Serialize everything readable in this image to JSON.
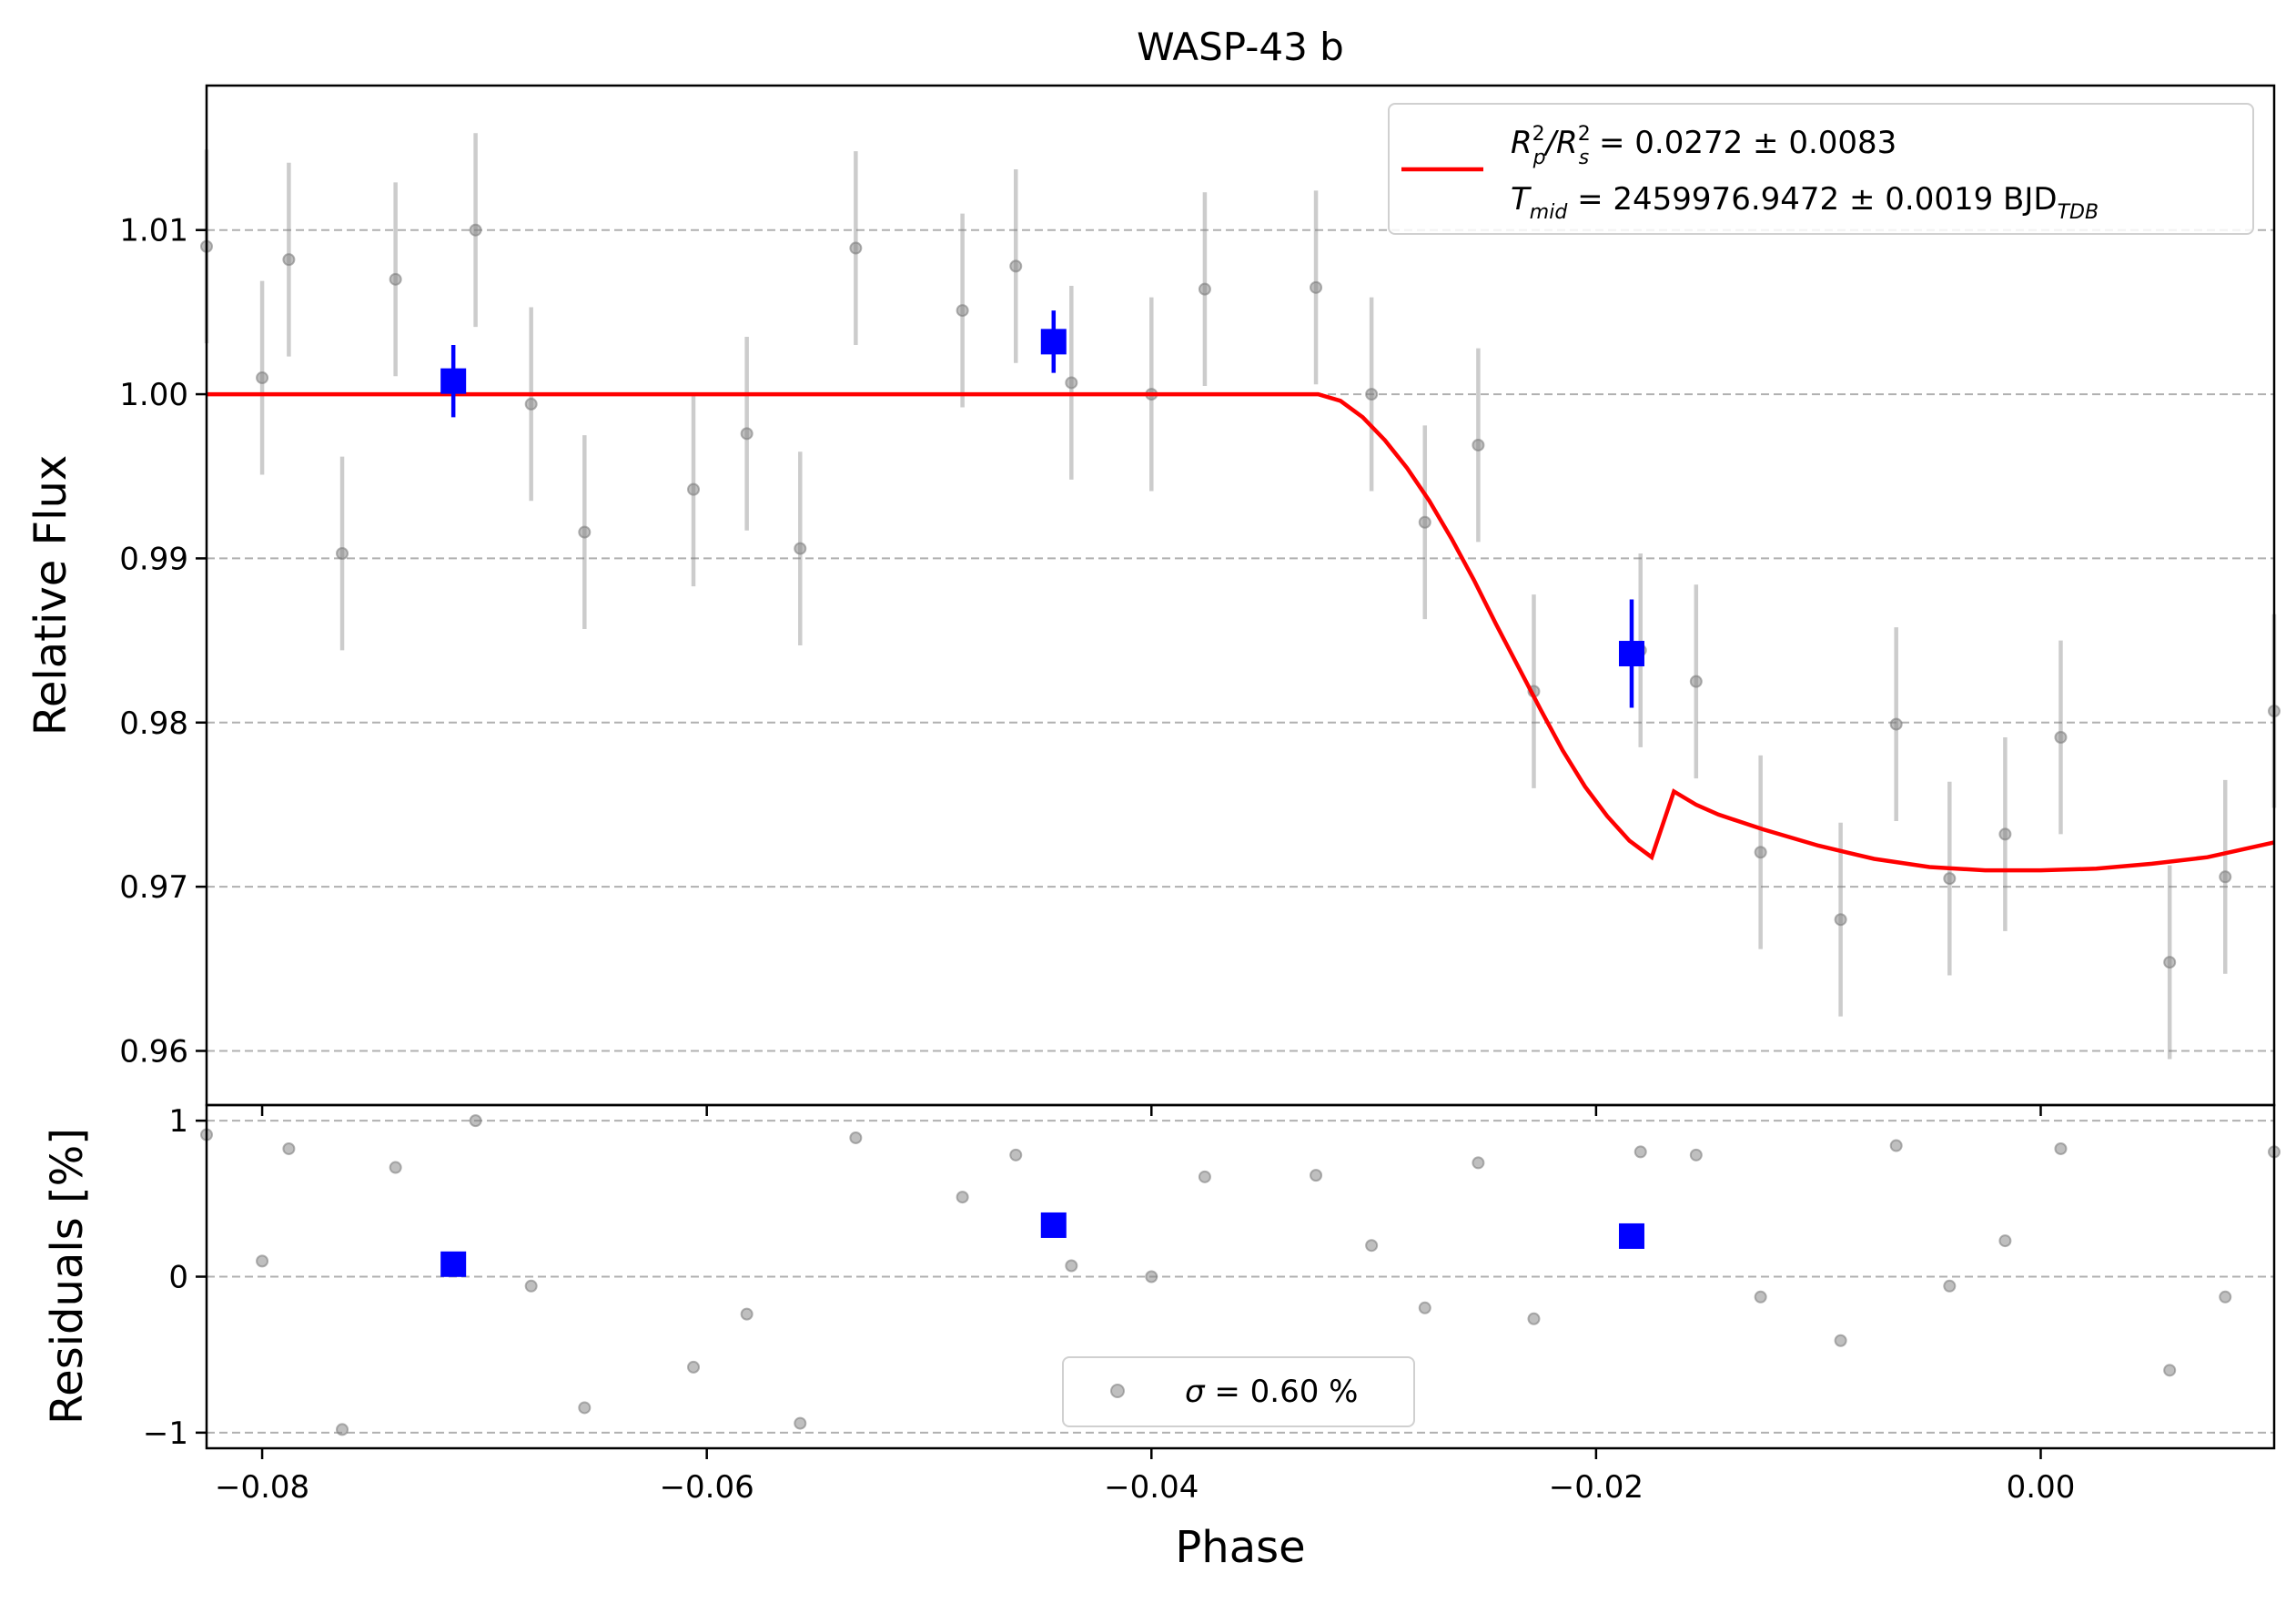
{
  "chart_data": [
    {
      "type": "scatter",
      "title": "WASP-43 b",
      "xlabel": "",
      "ylabel": "Relative Flux",
      "xlim": [
        -0.0825,
        0.0105
      ],
      "ylim": [
        0.9567,
        1.0188
      ],
      "x_ticks": [
        -0.08,
        -0.06,
        -0.04,
        -0.02,
        0.0
      ],
      "x_tick_labels": [
        "−0.08",
        "−0.06",
        "−0.04",
        "−0.02",
        "0.00"
      ],
      "y_ticks": [
        0.96,
        0.97,
        0.98,
        0.99,
        1.0,
        1.01
      ],
      "y_tick_labels": [
        "0.96",
        "0.97",
        "0.98",
        "0.99",
        "1.00",
        "1.01"
      ],
      "grid": "horizontal-dashed",
      "legend_position": "top-right",
      "legend": {
        "rp_prefix": "R",
        "rp_sup": "2",
        "rp_sub": "p",
        "rs_prefix": "/R",
        "rs_sup": "2",
        "rs_sub": "s",
        "rp_value": " = 0.0272 ± 0.0083",
        "t_prefix": "T",
        "t_sub": "mid",
        "t_value": " = 2459976.9472 ± 0.0019 BJD",
        "t_unit_sub": "TDB"
      },
      "series": [
        {
          "kind": "raw",
          "color": "#808080",
          "x": [
            -0.0825,
            -0.08,
            -0.0788,
            -0.0764,
            -0.074,
            -0.0704,
            -0.0679,
            -0.0655,
            -0.0606,
            -0.0582,
            -0.0558,
            -0.0533,
            -0.0485,
            -0.0461,
            -0.0436,
            -0.04,
            -0.0376,
            -0.0326,
            -0.0301,
            -0.0277,
            -0.0253,
            -0.0228,
            -0.018,
            -0.0155,
            -0.0126,
            -0.009,
            -0.0065,
            -0.0041,
            -0.0016,
            0.0009,
            0.0058,
            0.0083,
            0.0105
          ],
          "y": [
            1.009,
            1.001,
            1.0082,
            0.9903,
            1.007,
            1.01,
            0.9994,
            0.9916,
            0.9942,
            0.9976,
            0.9906,
            1.0089,
            1.0051,
            1.0078,
            1.0007,
            1.0,
            1.0064,
            1.0065,
            1.0,
            0.9922,
            0.9969,
            0.9819,
            0.9844,
            0.9825,
            0.9721,
            0.968,
            0.9799,
            0.9705,
            0.9732,
            0.9791,
            0.9654,
            0.9706,
            0.9807
          ],
          "yerr": 0.0059
        },
        {
          "kind": "binned",
          "color": "#0000ff",
          "x": [
            -0.0714,
            -0.0444,
            -0.0184
          ],
          "y": [
            1.0008,
            1.0032,
            0.9842
          ],
          "yerr": [
            0.0022,
            0.0019,
            0.0033
          ]
        },
        {
          "kind": "model",
          "color": "#ff0000",
          "x": [
            -0.0825,
            -0.0325,
            -0.0315,
            -0.0305,
            -0.0295,
            -0.0285,
            -0.0275,
            -0.0265,
            -0.0255,
            -0.0245,
            -0.0235,
            -0.0225,
            -0.0215,
            -0.0205,
            -0.0195,
            -0.0185,
            -0.0175,
            -0.0165,
            -0.0155,
            -0.0145,
            -0.0125,
            -0.01,
            -0.0075,
            -0.005,
            -0.0025,
            0.0,
            0.0025,
            0.005,
            0.0075,
            0.0105
          ],
          "y": [
            1.0,
            1.0,
            0.9996,
            0.9986,
            0.9972,
            0.9955,
            0.9935,
            0.9912,
            0.9887,
            0.986,
            0.9834,
            0.9808,
            0.9783,
            0.9761,
            0.9743,
            0.9728,
            0.9718,
            0.9758,
            0.975,
            0.9744,
            0.9735,
            0.9725,
            0.9717,
            0.9712,
            0.971,
            0.971,
            0.9711,
            0.9714,
            0.9718,
            0.9727
          ]
        }
      ]
    },
    {
      "type": "scatter",
      "xlabel": "Phase",
      "ylabel": "Residuals [%]",
      "xlim": [
        -0.0825,
        0.0105
      ],
      "ylim": [
        -1.1,
        1.1
      ],
      "x_ticks": [
        -0.08,
        -0.06,
        -0.04,
        -0.02,
        0.0
      ],
      "x_tick_labels": [
        "−0.08",
        "−0.06",
        "−0.04",
        "−0.02",
        "0.00"
      ],
      "y_ticks": [
        -1,
        0,
        1
      ],
      "y_tick_labels": [
        "−1",
        "0",
        "1"
      ],
      "grid": "horizontal-dashed",
      "legend_position": "bottom-center",
      "legend": {
        "sigma_symbol": "σ",
        "sigma_value": " = 0.60 %"
      },
      "series": [
        {
          "kind": "raw",
          "color": "#808080",
          "x": [
            -0.0825,
            -0.08,
            -0.0788,
            -0.0764,
            -0.074,
            -0.0704,
            -0.0679,
            -0.0655,
            -0.0606,
            -0.0582,
            -0.0558,
            -0.0533,
            -0.0485,
            -0.0461,
            -0.0436,
            -0.04,
            -0.0376,
            -0.0326,
            -0.0301,
            -0.0277,
            -0.0253,
            -0.0228,
            -0.018,
            -0.0155,
            -0.0126,
            -0.009,
            -0.0065,
            -0.0041,
            -0.0016,
            0.0009,
            0.0058,
            0.0083,
            0.0105
          ],
          "y": [
            0.91,
            0.1,
            0.82,
            -0.98,
            0.7,
            1.0,
            -0.06,
            -0.84,
            -0.58,
            -0.24,
            -0.94,
            0.89,
            0.51,
            0.78,
            0.07,
            0.0,
            0.64,
            0.65,
            0.2,
            -0.2,
            0.73,
            -0.27,
            0.8,
            0.78,
            -0.13,
            -0.41,
            0.84,
            -0.06,
            0.23,
            0.82,
            -0.6,
            -0.13,
            0.8
          ]
        },
        {
          "kind": "binned",
          "color": "#0000ff",
          "x": [
            -0.0714,
            -0.0444,
            -0.0184
          ],
          "y": [
            0.08,
            0.33,
            0.26
          ]
        }
      ]
    }
  ]
}
